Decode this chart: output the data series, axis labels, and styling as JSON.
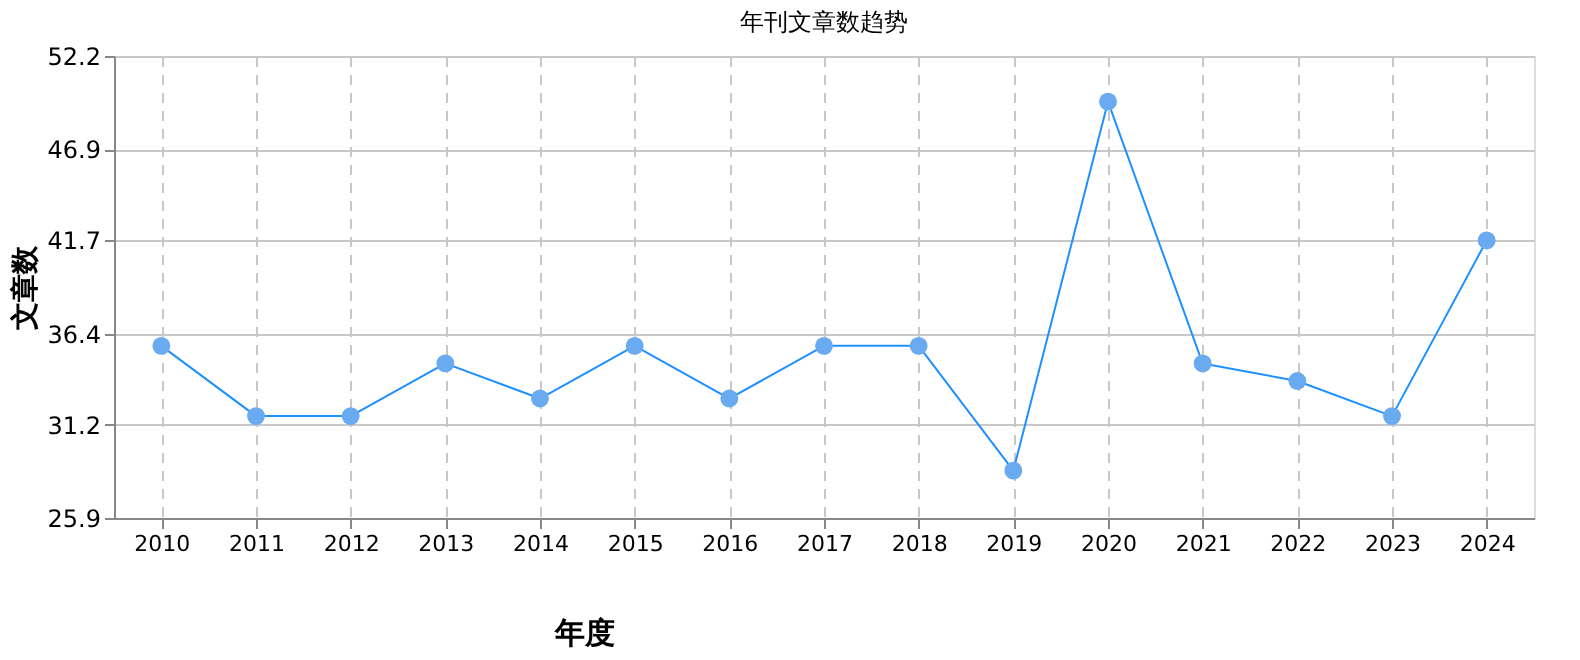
{
  "chart_data": {
    "type": "line",
    "title": "年刊文章数趋势",
    "xlabel": "年度",
    "ylabel": "文章数",
    "categories": [
      "2010",
      "2011",
      "2012",
      "2013",
      "2014",
      "2015",
      "2016",
      "2017",
      "2018",
      "2019",
      "2020",
      "2021",
      "2022",
      "2023",
      "2024"
    ],
    "series": [
      {
        "color": "#1e90ff",
        "values": [
          35.7,
          31.7,
          31.7,
          34.7,
          32.7,
          35.7,
          32.7,
          35.7,
          35.7,
          28.6,
          49.6,
          34.7,
          33.7,
          31.7,
          41.7
        ]
      }
    ],
    "ylim": [
      25.9,
      52.2
    ],
    "yticks": [
      25.9,
      31.2,
      36.4,
      41.7,
      46.9,
      52.2
    ],
    "grid": true,
    "marker": "circle",
    "line_style": "solid"
  }
}
